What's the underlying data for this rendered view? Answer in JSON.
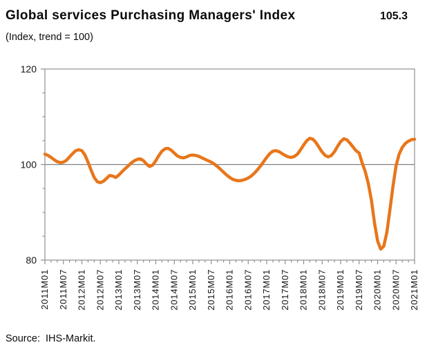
{
  "header": {
    "title": "Global services Purchasing Managers' Index",
    "latest_value": "105.3",
    "subtitle": "(Index, trend = 100)"
  },
  "footer": {
    "source": "Source:  IHS-Markit."
  },
  "chart_data": {
    "type": "line",
    "title": "Global services Purchasing Managers' Index",
    "subtitle": "(Index, trend = 100)",
    "series_name": "Global services PMI (index, trend = 100)",
    "latest_value": 105.3,
    "x_start": "2011M01",
    "x_end": "2021M01",
    "x_frequency": "monthly",
    "x_tick_labels": [
      "2011M01",
      "2011M07",
      "2012M01",
      "2012M07",
      "2013M01",
      "2013M07",
      "2014M01",
      "2014M07",
      "2015M01",
      "2015M07",
      "2016M01",
      "2016M07",
      "2017M01",
      "2017M07",
      "2018M01",
      "2018M07",
      "2019M01",
      "2019M07",
      "2020M01",
      "2020M07",
      "2021M01"
    ],
    "x_major_tick_every_months": 6,
    "x_minor_tick_every_months": 2,
    "ylim": [
      80,
      120
    ],
    "y_major_ticks": [
      80,
      100,
      120
    ],
    "y_minor_step": 5,
    "baseline": 100,
    "grid": "baseline-only",
    "legend": "none",
    "line_color": "#E8761B",
    "axis_color": "#8F8F8F",
    "values": [
      102.2,
      101.9,
      101.5,
      101.0,
      100.6,
      100.4,
      100.5,
      100.9,
      101.6,
      102.3,
      102.9,
      103.1,
      102.9,
      102.0,
      100.5,
      98.8,
      97.3,
      96.4,
      96.2,
      96.5,
      97.1,
      97.7,
      97.6,
      97.3,
      97.8,
      98.5,
      99.1,
      99.7,
      100.3,
      100.8,
      101.1,
      101.2,
      100.8,
      100.1,
      99.6,
      99.9,
      100.8,
      101.9,
      102.8,
      103.3,
      103.4,
      103.0,
      102.4,
      101.8,
      101.5,
      101.4,
      101.6,
      101.9,
      102.0,
      101.9,
      101.7,
      101.4,
      101.1,
      100.8,
      100.5,
      100.1,
      99.6,
      99.0,
      98.4,
      97.8,
      97.3,
      96.9,
      96.7,
      96.6,
      96.7,
      96.9,
      97.2,
      97.6,
      98.2,
      98.9,
      99.7,
      100.6,
      101.5,
      102.3,
      102.8,
      102.9,
      102.7,
      102.3,
      101.9,
      101.6,
      101.5,
      101.7,
      102.2,
      103.1,
      104.1,
      105.0,
      105.5,
      105.3,
      104.6,
      103.6,
      102.6,
      101.9,
      101.6,
      101.9,
      102.7,
      103.8,
      104.8,
      105.4,
      105.2,
      104.5,
      103.7,
      102.9,
      102.4,
      100.3,
      98.5,
      96.0,
      92.5,
      87.8,
      84.0,
      82.3,
      82.9,
      85.8,
      90.5,
      95.5,
      99.8,
      102.2,
      103.6,
      104.4,
      104.9,
      105.2,
      105.3
    ]
  }
}
